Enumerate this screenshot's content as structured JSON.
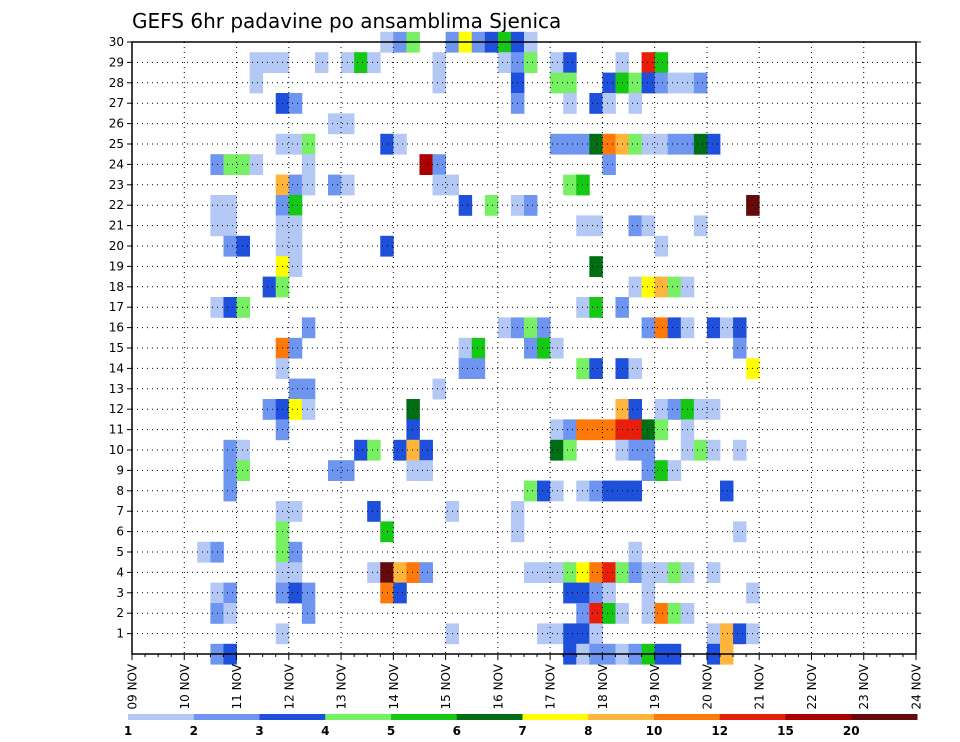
{
  "chart_data": {
    "type": "heatmap",
    "title": "GEFS 6hr padavine po ansamblima Sjenica",
    "xlabel": "",
    "ylabel": "",
    "x_tick_labels": [
      "09 NOV",
      "10 NOV",
      "11 NOV",
      "12 NOV",
      "13 NOV",
      "14 NOV",
      "15 NOV",
      "16 NOV",
      "17 NOV",
      "18 NOV",
      "19 NOV",
      "20 NOV",
      "21 NOV",
      "22 NOV",
      "23 NOV",
      "24 NOV"
    ],
    "y_tick_labels": [
      "1",
      "2",
      "3",
      "4",
      "5",
      "6",
      "7",
      "8",
      "9",
      "10",
      "11",
      "12",
      "13",
      "14",
      "15",
      "16",
      "17",
      "18",
      "19",
      "20",
      "21",
      "22",
      "23",
      "24",
      "25",
      "26",
      "27",
      "28",
      "29",
      "30"
    ],
    "x_range_days": [
      0,
      15
    ],
    "steps_per_day": 4,
    "y_range": [
      0,
      30
    ],
    "grid": true,
    "legend_position": "bottom",
    "legend": {
      "labels": [
        "1",
        "2",
        "3",
        "4",
        "5",
        "6",
        "7",
        "8",
        "10",
        "12",
        "15",
        "20"
      ],
      "colors": [
        "#b4c8f5",
        "#6e96f0",
        "#1e50dc",
        "#78f064",
        "#14c814",
        "#006e14",
        "#ffff00",
        "#ffb43c",
        "#ff780a",
        "#e61e0a",
        "#aa0000",
        "#640a0a"
      ]
    },
    "cells": [
      [
        19,
        30,
        1
      ],
      [
        20,
        30,
        2
      ],
      [
        21,
        30,
        4
      ],
      [
        24,
        30,
        2
      ],
      [
        25,
        30,
        7
      ],
      [
        26,
        30,
        2
      ],
      [
        27,
        30,
        3
      ],
      [
        28,
        30,
        5
      ],
      [
        29,
        30,
        3
      ],
      [
        30,
        30,
        1
      ],
      [
        9,
        29,
        1
      ],
      [
        10,
        29,
        1
      ],
      [
        11,
        29,
        1
      ],
      [
        14,
        29,
        1
      ],
      [
        16,
        29,
        1
      ],
      [
        17,
        29,
        5
      ],
      [
        18,
        29,
        1
      ],
      [
        23,
        29,
        1
      ],
      [
        23,
        28,
        1
      ],
      [
        28,
        29,
        1
      ],
      [
        29,
        29,
        2
      ],
      [
        30,
        29,
        4
      ],
      [
        32,
        29,
        1
      ],
      [
        33,
        29,
        3
      ],
      [
        37,
        29,
        1
      ],
      [
        39,
        29,
        10
      ],
      [
        40,
        29,
        5
      ],
      [
        9,
        28,
        1
      ],
      [
        29,
        28,
        3
      ],
      [
        32,
        28,
        4
      ],
      [
        33,
        28,
        4
      ],
      [
        36,
        28,
        3
      ],
      [
        37,
        28,
        5
      ],
      [
        38,
        28,
        4
      ],
      [
        39,
        28,
        3
      ],
      [
        40,
        28,
        2
      ],
      [
        41,
        28,
        1
      ],
      [
        42,
        28,
        1
      ],
      [
        43,
        28,
        2
      ],
      [
        11,
        27,
        3
      ],
      [
        12,
        27,
        2
      ],
      [
        29,
        27,
        2
      ],
      [
        33,
        27,
        1
      ],
      [
        35,
        27,
        3
      ],
      [
        36,
        27,
        1
      ],
      [
        38,
        27,
        1
      ],
      [
        15,
        26,
        1
      ],
      [
        16,
        26,
        1
      ],
      [
        11,
        25,
        1
      ],
      [
        12,
        25,
        1
      ],
      [
        13,
        25,
        4
      ],
      [
        19,
        25,
        3
      ],
      [
        20,
        25,
        1
      ],
      [
        32,
        25,
        2
      ],
      [
        33,
        25,
        2
      ],
      [
        34,
        25,
        2
      ],
      [
        35,
        25,
        6
      ],
      [
        36,
        25,
        9
      ],
      [
        37,
        25,
        8
      ],
      [
        38,
        25,
        4
      ],
      [
        39,
        25,
        1
      ],
      [
        40,
        25,
        1
      ],
      [
        41,
        25,
        2
      ],
      [
        42,
        25,
        2
      ],
      [
        43,
        25,
        6
      ],
      [
        44,
        25,
        3
      ],
      [
        6,
        24,
        2
      ],
      [
        7,
        24,
        4
      ],
      [
        8,
        24,
        4
      ],
      [
        9,
        24,
        1
      ],
      [
        13,
        24,
        1
      ],
      [
        22,
        24,
        11
      ],
      [
        23,
        24,
        2
      ],
      [
        36,
        24,
        2
      ],
      [
        11,
        23,
        8
      ],
      [
        12,
        23,
        2
      ],
      [
        13,
        23,
        1
      ],
      [
        15,
        23,
        2
      ],
      [
        16,
        23,
        1
      ],
      [
        23,
        23,
        1
      ],
      [
        24,
        23,
        1
      ],
      [
        33,
        23,
        4
      ],
      [
        34,
        23,
        5
      ],
      [
        6,
        22,
        1
      ],
      [
        7,
        22,
        1
      ],
      [
        11,
        22,
        2
      ],
      [
        12,
        22,
        5
      ],
      [
        25,
        22,
        3
      ],
      [
        27,
        22,
        4
      ],
      [
        29,
        22,
        1
      ],
      [
        30,
        22,
        2
      ],
      [
        47,
        22,
        12
      ],
      [
        6,
        21,
        1
      ],
      [
        7,
        21,
        1
      ],
      [
        11,
        21,
        1
      ],
      [
        12,
        21,
        1
      ],
      [
        34,
        21,
        1
      ],
      [
        35,
        21,
        1
      ],
      [
        38,
        21,
        2
      ],
      [
        39,
        21,
        1
      ],
      [
        43,
        21,
        1
      ],
      [
        7,
        20,
        2
      ],
      [
        8,
        20,
        3
      ],
      [
        11,
        20,
        1
      ],
      [
        12,
        20,
        1
      ],
      [
        19,
        20,
        3
      ],
      [
        40,
        20,
        1
      ],
      [
        11,
        19,
        7
      ],
      [
        12,
        19,
        1
      ],
      [
        35,
        19,
        6
      ],
      [
        10,
        18,
        3
      ],
      [
        11,
        18,
        4
      ],
      [
        38,
        18,
        1
      ],
      [
        39,
        18,
        7
      ],
      [
        40,
        18,
        8
      ],
      [
        41,
        18,
        4
      ],
      [
        42,
        18,
        1
      ],
      [
        6,
        17,
        1
      ],
      [
        7,
        17,
        3
      ],
      [
        8,
        17,
        4
      ],
      [
        34,
        17,
        1
      ],
      [
        35,
        17,
        5
      ],
      [
        37,
        17,
        2
      ],
      [
        13,
        16,
        2
      ],
      [
        28,
        16,
        1
      ],
      [
        29,
        16,
        2
      ],
      [
        30,
        16,
        4
      ],
      [
        31,
        16,
        2
      ],
      [
        39,
        16,
        2
      ],
      [
        40,
        16,
        9
      ],
      [
        41,
        16,
        3
      ],
      [
        42,
        16,
        1
      ],
      [
        44,
        16,
        3
      ],
      [
        45,
        16,
        1
      ],
      [
        46,
        16,
        3
      ],
      [
        11,
        15,
        9
      ],
      [
        12,
        15,
        2
      ],
      [
        25,
        15,
        1
      ],
      [
        26,
        15,
        5
      ],
      [
        30,
        15,
        2
      ],
      [
        31,
        15,
        5
      ],
      [
        32,
        15,
        1
      ],
      [
        46,
        15,
        2
      ],
      [
        11,
        14,
        1
      ],
      [
        25,
        14,
        2
      ],
      [
        26,
        14,
        2
      ],
      [
        34,
        14,
        4
      ],
      [
        35,
        14,
        3
      ],
      [
        37,
        14,
        3
      ],
      [
        38,
        14,
        1
      ],
      [
        47,
        14,
        7
      ],
      [
        12,
        13,
        2
      ],
      [
        13,
        13,
        2
      ],
      [
        23,
        13,
        1
      ],
      [
        10,
        12,
        2
      ],
      [
        11,
        12,
        3
      ],
      [
        12,
        12,
        7
      ],
      [
        13,
        12,
        1
      ],
      [
        21,
        12,
        6
      ],
      [
        37,
        12,
        8
      ],
      [
        38,
        12,
        3
      ],
      [
        40,
        12,
        1
      ],
      [
        41,
        12,
        2
      ],
      [
        42,
        12,
        5
      ],
      [
        43,
        12,
        1
      ],
      [
        44,
        12,
        1
      ],
      [
        11,
        11,
        2
      ],
      [
        21,
        11,
        3
      ],
      [
        32,
        11,
        1
      ],
      [
        33,
        11,
        2
      ],
      [
        34,
        11,
        9
      ],
      [
        35,
        11,
        9
      ],
      [
        36,
        11,
        9
      ],
      [
        37,
        11,
        10
      ],
      [
        38,
        11,
        10
      ],
      [
        39,
        11,
        6
      ],
      [
        40,
        11,
        4
      ],
      [
        42,
        11,
        1
      ],
      [
        7,
        10,
        2
      ],
      [
        8,
        10,
        1
      ],
      [
        17,
        10,
        3
      ],
      [
        18,
        10,
        4
      ],
      [
        20,
        10,
        3
      ],
      [
        21,
        10,
        8
      ],
      [
        22,
        10,
        3
      ],
      [
        32,
        10,
        6
      ],
      [
        33,
        10,
        4
      ],
      [
        37,
        10,
        1
      ],
      [
        38,
        10,
        2
      ],
      [
        39,
        10,
        2
      ],
      [
        42,
        10,
        1
      ],
      [
        43,
        10,
        4
      ],
      [
        44,
        10,
        1
      ],
      [
        46,
        10,
        1
      ],
      [
        7,
        9,
        2
      ],
      [
        8,
        9,
        4
      ],
      [
        15,
        9,
        2
      ],
      [
        16,
        9,
        2
      ],
      [
        21,
        9,
        1
      ],
      [
        22,
        9,
        1
      ],
      [
        39,
        9,
        2
      ],
      [
        40,
        9,
        5
      ],
      [
        41,
        9,
        1
      ],
      [
        7,
        8,
        2
      ],
      [
        30,
        8,
        4
      ],
      [
        31,
        8,
        3
      ],
      [
        32,
        8,
        1
      ],
      [
        34,
        8,
        1
      ],
      [
        35,
        8,
        2
      ],
      [
        36,
        8,
        3
      ],
      [
        37,
        8,
        3
      ],
      [
        38,
        8,
        3
      ],
      [
        45,
        8,
        3
      ],
      [
        11,
        7,
        1
      ],
      [
        12,
        7,
        1
      ],
      [
        18,
        7,
        3
      ],
      [
        24,
        7,
        1
      ],
      [
        29,
        7,
        1
      ],
      [
        11,
        6,
        4
      ],
      [
        19,
        6,
        5
      ],
      [
        29,
        6,
        1
      ],
      [
        46,
        6,
        1
      ],
      [
        5,
        5,
        1
      ],
      [
        6,
        5,
        2
      ],
      [
        11,
        5,
        4
      ],
      [
        12,
        5,
        2
      ],
      [
        38,
        5,
        1
      ],
      [
        11,
        4,
        1
      ],
      [
        12,
        4,
        1
      ],
      [
        18,
        4,
        1
      ],
      [
        19,
        4,
        12
      ],
      [
        20,
        4,
        8
      ],
      [
        21,
        4,
        9
      ],
      [
        22,
        4,
        2
      ],
      [
        30,
        4,
        1
      ],
      [
        31,
        4,
        1
      ],
      [
        32,
        4,
        1
      ],
      [
        33,
        4,
        4
      ],
      [
        34,
        4,
        7
      ],
      [
        35,
        4,
        9
      ],
      [
        36,
        4,
        10
      ],
      [
        37,
        4,
        4
      ],
      [
        38,
        4,
        2
      ],
      [
        39,
        4,
        1
      ],
      [
        40,
        4,
        1
      ],
      [
        41,
        4,
        4
      ],
      [
        42,
        4,
        1
      ],
      [
        44,
        4,
        1
      ],
      [
        6,
        3,
        1
      ],
      [
        7,
        3,
        2
      ],
      [
        11,
        3,
        2
      ],
      [
        12,
        3,
        3
      ],
      [
        13,
        3,
        2
      ],
      [
        19,
        3,
        9
      ],
      [
        20,
        3,
        3
      ],
      [
        33,
        3,
        3
      ],
      [
        34,
        3,
        3
      ],
      [
        35,
        3,
        2
      ],
      [
        36,
        3,
        1
      ],
      [
        39,
        3,
        1
      ],
      [
        47,
        3,
        1
      ],
      [
        6,
        2,
        2
      ],
      [
        7,
        2,
        1
      ],
      [
        13,
        2,
        2
      ],
      [
        34,
        2,
        2
      ],
      [
        35,
        2,
        10
      ],
      [
        36,
        2,
        5
      ],
      [
        37,
        2,
        1
      ],
      [
        39,
        2,
        1
      ],
      [
        40,
        2,
        9
      ],
      [
        41,
        2,
        4
      ],
      [
        42,
        2,
        1
      ],
      [
        11,
        1,
        1
      ],
      [
        24,
        1,
        1
      ],
      [
        31,
        1,
        1
      ],
      [
        32,
        1,
        1
      ],
      [
        33,
        1,
        3
      ],
      [
        34,
        1,
        3
      ],
      [
        35,
        1,
        1
      ],
      [
        44,
        1,
        1
      ],
      [
        45,
        1,
        8
      ],
      [
        46,
        1,
        3
      ],
      [
        47,
        1,
        1
      ],
      [
        6,
        0,
        2
      ],
      [
        7,
        0,
        3
      ],
      [
        33,
        0,
        3
      ],
      [
        34,
        0,
        1
      ],
      [
        35,
        0,
        2
      ],
      [
        36,
        0,
        2
      ],
      [
        37,
        0,
        1
      ],
      [
        38,
        0,
        2
      ],
      [
        39,
        0,
        5
      ],
      [
        40,
        0,
        3
      ],
      [
        41,
        0,
        3
      ],
      [
        44,
        0,
        3
      ],
      [
        45,
        0,
        8
      ]
    ]
  }
}
